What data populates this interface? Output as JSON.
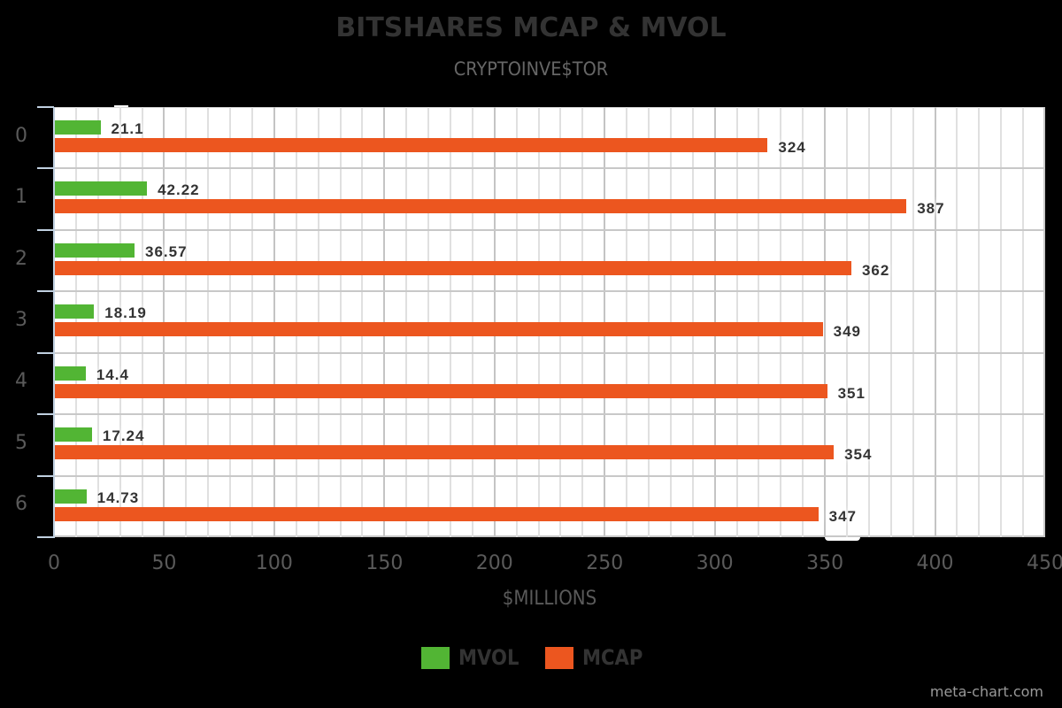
{
  "header": {
    "title": "BITSHARES MCAP & MVOL",
    "subtitle": "CRYPTOINVE$TOR"
  },
  "axes": {
    "x_title": "$MILLIONS",
    "x_ticks": [
      "0",
      "50",
      "100",
      "150",
      "200",
      "250",
      "300",
      "350",
      "400",
      "450"
    ],
    "y_ticks": [
      "0",
      "1",
      "2",
      "3",
      "4",
      "5",
      "6"
    ]
  },
  "legend": {
    "items": [
      {
        "label": "MVOL",
        "color": "#52b534"
      },
      {
        "label": "MCAP",
        "color": "#ec561f"
      }
    ]
  },
  "credit": "meta-chart.com",
  "colors": {
    "mvol": "#52b534",
    "mcap": "#ec561f",
    "background": "#000000",
    "plot_background": "#ffffff"
  },
  "chart_data": {
    "type": "bar",
    "orientation": "horizontal",
    "title": "BITSHARES MCAP & MVOL",
    "subtitle": "CRYPTOINVE$TOR",
    "xlabel": "$MILLIONS",
    "ylabel": "",
    "categories": [
      "0",
      "1",
      "2",
      "3",
      "4",
      "5",
      "6"
    ],
    "series": [
      {
        "name": "MVOL",
        "color": "#52b534",
        "values": [
          21.1,
          42.22,
          36.57,
          18.19,
          14.4,
          17.24,
          14.73
        ]
      },
      {
        "name": "MCAP",
        "color": "#ec561f",
        "values": [
          324,
          387,
          362,
          349,
          351,
          354,
          347
        ]
      }
    ],
    "data_labels": {
      "MVOL": [
        "21.1",
        "42.22",
        "36.57",
        "18.19",
        "14.4",
        "17.24",
        "14.73"
      ],
      "MCAP": [
        "324",
        "387",
        "362",
        "349",
        "351",
        "354",
        "347"
      ]
    },
    "xlim": [
      0,
      450
    ],
    "x_major_step": 50,
    "x_minor_step": 10,
    "grid": true,
    "legend_position": "bottom"
  }
}
